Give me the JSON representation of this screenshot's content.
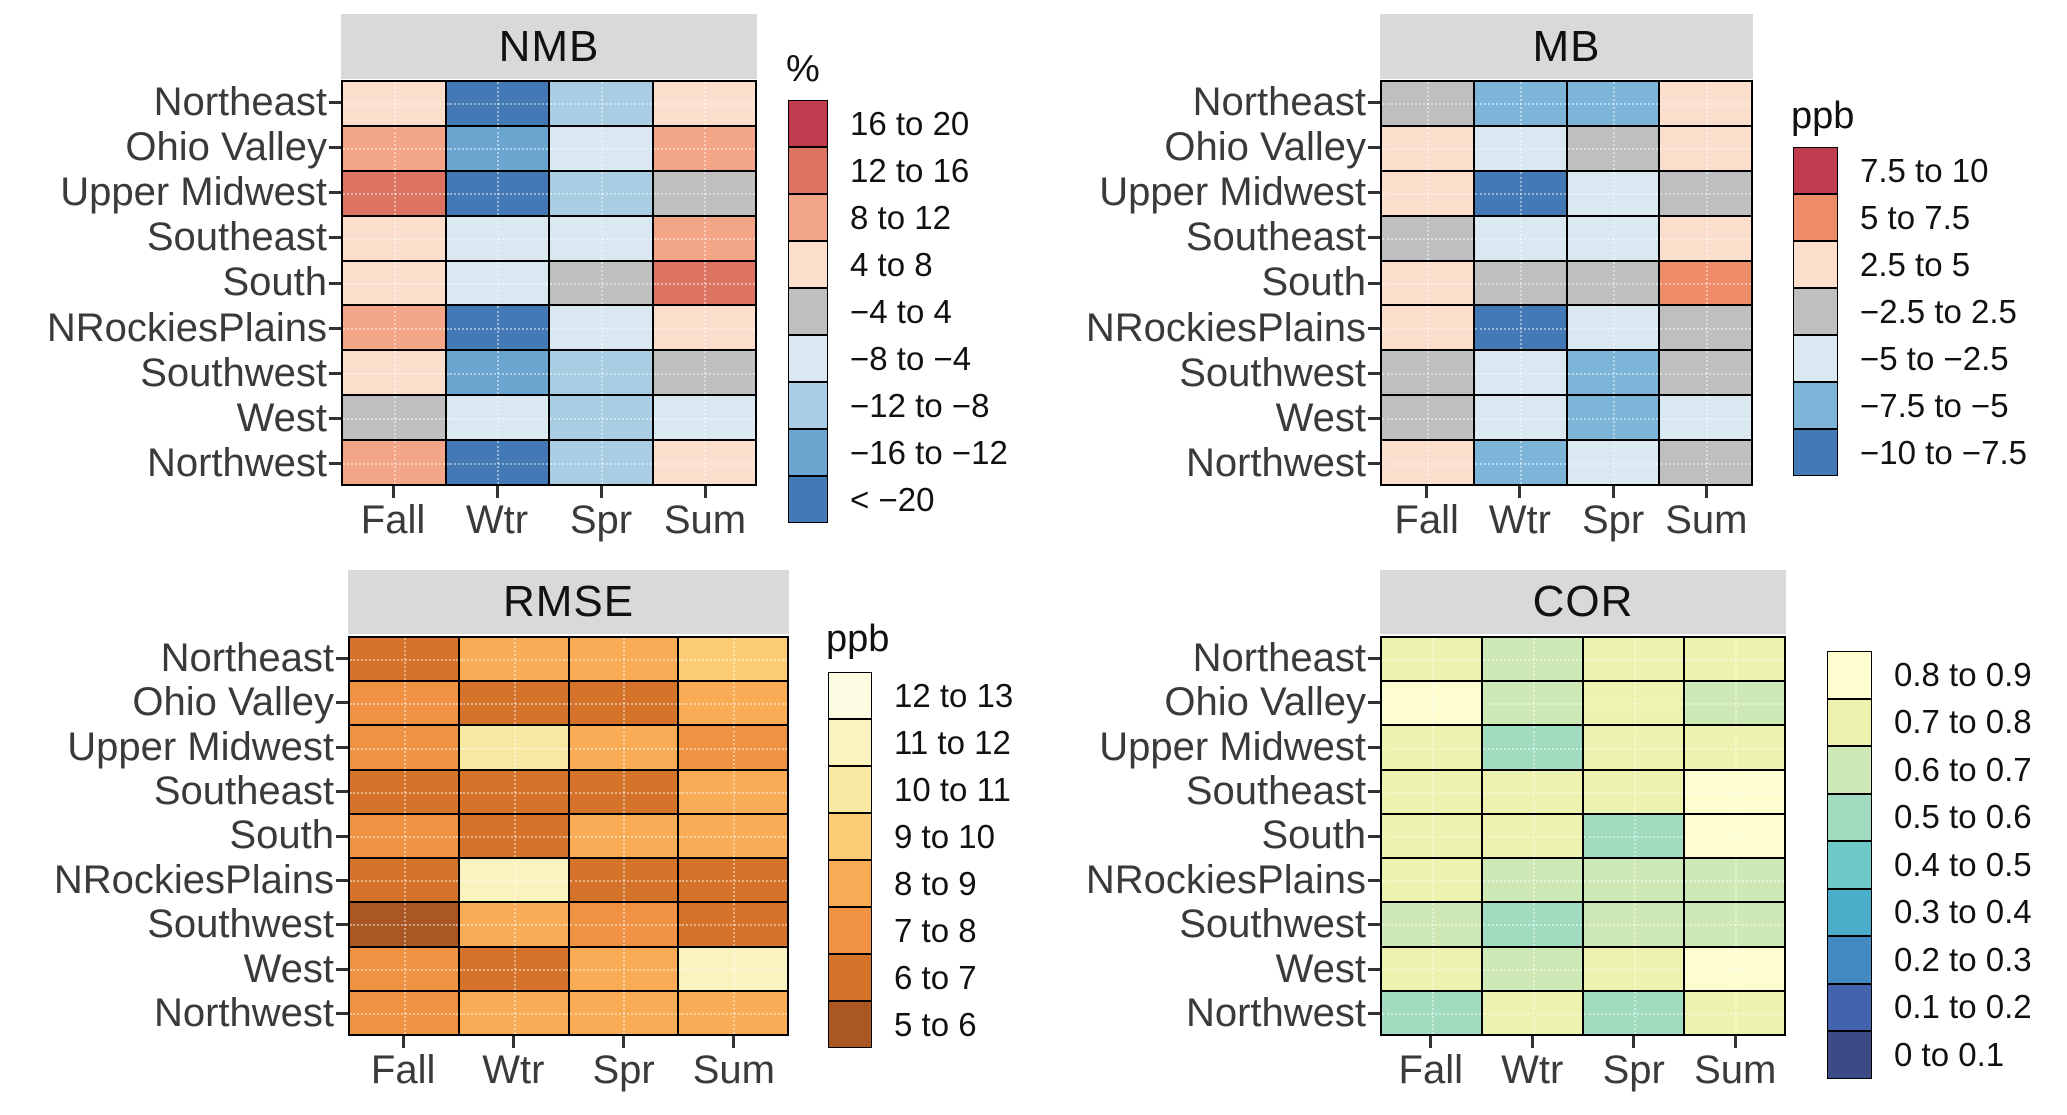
{
  "figure": {
    "background": "#ffffff",
    "strip_color": "#d9d9d9",
    "axis_text_color": "#3a3a3a"
  },
  "chart_data": [
    {
      "type": "heatmap",
      "id": "nmb",
      "title": "NMB",
      "legend_title": "%",
      "legend_position": "right",
      "rows": [
        "Northeast",
        "Ohio Valley",
        "Upper Midwest",
        "Southeast",
        "South",
        "NRockiesPlains",
        "Southwest",
        "West",
        "Northwest"
      ],
      "columns": [
        "Fall",
        "Wtr",
        "Spr",
        "Sum"
      ],
      "bins": [
        {
          "label": "16 to 20",
          "color": "#c13b4e"
        },
        {
          "label": "12 to 16",
          "color": "#dd7461"
        },
        {
          "label": "8 to 12",
          "color": "#f2a587"
        },
        {
          "label": "4 to 8",
          "color": "#fbdecb"
        },
        {
          "label": "−4 to 4",
          "color": "#bfbfbf"
        },
        {
          "label": "−8 to −4",
          "color": "#d9e8f1"
        },
        {
          "label": "−12 to −8",
          "color": "#a9cee4"
        },
        {
          "label": "−16 to −12",
          "color": "#6aa5d0"
        },
        {
          "label": "< −20",
          "color": "#4379b5"
        }
      ],
      "values": [
        [
          "4 to 8",
          "< −20",
          "−12 to −8",
          "4 to 8"
        ],
        [
          "8 to 12",
          "−16 to −12",
          "−8 to −4",
          "8 to 12"
        ],
        [
          "12 to 16",
          "< −20",
          "−12 to −8",
          "−4 to 4"
        ],
        [
          "4 to 8",
          "−8 to −4",
          "−8 to −4",
          "8 to 12"
        ],
        [
          "4 to 8",
          "−8 to −4",
          "−4 to 4",
          "12 to 16"
        ],
        [
          "8 to 12",
          "< −20",
          "−8 to −4",
          "4 to 8"
        ],
        [
          "4 to 8",
          "−16 to −12",
          "−12 to −8",
          "−4 to 4"
        ],
        [
          "−4 to 4",
          "−8 to −4",
          "−12 to −8",
          "−8 to −4"
        ],
        [
          "8 to 12",
          "< −20",
          "−12 to −8",
          "4 to 8"
        ]
      ]
    },
    {
      "type": "heatmap",
      "id": "mb",
      "title": "MB",
      "legend_title": "ppb",
      "legend_position": "right",
      "rows": [
        "Northeast",
        "Ohio Valley",
        "Upper Midwest",
        "Southeast",
        "South",
        "NRockiesPlains",
        "Southwest",
        "West",
        "Northwest"
      ],
      "columns": [
        "Fall",
        "Wtr",
        "Spr",
        "Sum"
      ],
      "bins": [
        {
          "label": "7.5 to 10",
          "color": "#c13b4e"
        },
        {
          "label": "5 to 7.5",
          "color": "#ee8b69"
        },
        {
          "label": "2.5 to 5",
          "color": "#fbdecb"
        },
        {
          "label": "−2.5 to 2.5",
          "color": "#bfbfbf"
        },
        {
          "label": "−5 to −2.5",
          "color": "#d9e8f1"
        },
        {
          "label": "−7.5 to −5",
          "color": "#7cb5d8"
        },
        {
          "label": "−10 to −7.5",
          "color": "#4379b5"
        }
      ],
      "values": [
        [
          "−2.5 to 2.5",
          "−7.5 to −5",
          "−7.5 to −5",
          "2.5 to 5"
        ],
        [
          "2.5 to 5",
          "−5 to −2.5",
          "−2.5 to 2.5",
          "2.5 to 5"
        ],
        [
          "2.5 to 5",
          "−10 to −7.5",
          "−5 to −2.5",
          "−2.5 to 2.5"
        ],
        [
          "−2.5 to 2.5",
          "−5 to −2.5",
          "−5 to −2.5",
          "2.5 to 5"
        ],
        [
          "2.5 to 5",
          "−2.5 to 2.5",
          "−2.5 to 2.5",
          "5 to 7.5"
        ],
        [
          "2.5 to 5",
          "−10 to −7.5",
          "−5 to −2.5",
          "−2.5 to 2.5"
        ],
        [
          "−2.5 to 2.5",
          "−5 to −2.5",
          "−7.5 to −5",
          "−2.5 to 2.5"
        ],
        [
          "−2.5 to 2.5",
          "−5 to −2.5",
          "−7.5 to −5",
          "−5 to −2.5"
        ],
        [
          "2.5 to 5",
          "−7.5 to −5",
          "−5 to −2.5",
          "−2.5 to 2.5"
        ]
      ]
    },
    {
      "type": "heatmap",
      "id": "rmse",
      "title": "RMSE",
      "legend_title": "ppb",
      "legend_position": "right",
      "rows": [
        "Northeast",
        "Ohio Valley",
        "Upper Midwest",
        "Southeast",
        "South",
        "NRockiesPlains",
        "Southwest",
        "West",
        "Northwest"
      ],
      "columns": [
        "Fall",
        "Wtr",
        "Spr",
        "Sum"
      ],
      "bins": [
        {
          "label": "12 to 13",
          "color": "#fdfce2"
        },
        {
          "label": "11 to 12",
          "color": "#faf3c0"
        },
        {
          "label": "10 to 11",
          "color": "#f8e9a2"
        },
        {
          "label": "9 to 10",
          "color": "#fccd74"
        },
        {
          "label": "8 to 9",
          "color": "#f9ab55"
        },
        {
          "label": "7 to 8",
          "color": "#f09243"
        },
        {
          "label": "6 to 7",
          "color": "#d6732b"
        },
        {
          "label": "5 to 6",
          "color": "#ab5723"
        }
      ],
      "values": [
        [
          "6 to 7",
          "8 to 9",
          "8 to 9",
          "9 to 10"
        ],
        [
          "7 to 8",
          "6 to 7",
          "6 to 7",
          "8 to 9"
        ],
        [
          "7 to 8",
          "10 to 11",
          "8 to 9",
          "7 to 8"
        ],
        [
          "6 to 7",
          "6 to 7",
          "6 to 7",
          "8 to 9"
        ],
        [
          "7 to 8",
          "6 to 7",
          "8 to 9",
          "8 to 9"
        ],
        [
          "6 to 7",
          "11 to 12",
          "6 to 7",
          "6 to 7"
        ],
        [
          "5 to 6",
          "8 to 9",
          "7 to 8",
          "6 to 7"
        ],
        [
          "7 to 8",
          "6 to 7",
          "8 to 9",
          "11 to 12"
        ],
        [
          "7 to 8",
          "8 to 9",
          "8 to 9",
          "8 to 9"
        ]
      ]
    },
    {
      "type": "heatmap",
      "id": "cor",
      "title": "COR",
      "legend_title": "",
      "legend_position": "right",
      "rows": [
        "Northeast",
        "Ohio Valley",
        "Upper Midwest",
        "Southeast",
        "South",
        "NRockiesPlains",
        "Southwest",
        "West",
        "Northwest"
      ],
      "columns": [
        "Fall",
        "Wtr",
        "Spr",
        "Sum"
      ],
      "bins": [
        {
          "label": "0.8 to 0.9",
          "color": "#fdfdd0"
        },
        {
          "label": "0.7 to 0.8",
          "color": "#edf3ae"
        },
        {
          "label": "0.6 to 0.7",
          "color": "#cfe9b6"
        },
        {
          "label": "0.5 to 0.6",
          "color": "#a2dcc0"
        },
        {
          "label": "0.4 to 0.5",
          "color": "#6ec8c5"
        },
        {
          "label": "0.3 to 0.4",
          "color": "#4aadca"
        },
        {
          "label": "0.2 to 0.3",
          "color": "#4489c2"
        },
        {
          "label": "0.1 to 0.2",
          "color": "#4463ae"
        },
        {
          "label": "0 to 0.1",
          "color": "#3c4b85"
        }
      ],
      "values": [
        [
          "0.7 to 0.8",
          "0.6 to 0.7",
          "0.7 to 0.8",
          "0.7 to 0.8"
        ],
        [
          "0.8 to 0.9",
          "0.6 to 0.7",
          "0.7 to 0.8",
          "0.6 to 0.7"
        ],
        [
          "0.7 to 0.8",
          "0.5 to 0.6",
          "0.7 to 0.8",
          "0.7 to 0.8"
        ],
        [
          "0.7 to 0.8",
          "0.7 to 0.8",
          "0.7 to 0.8",
          "0.8 to 0.9"
        ],
        [
          "0.7 to 0.8",
          "0.7 to 0.8",
          "0.5 to 0.6",
          "0.8 to 0.9"
        ],
        [
          "0.7 to 0.8",
          "0.6 to 0.7",
          "0.6 to 0.7",
          "0.6 to 0.7"
        ],
        [
          "0.6 to 0.7",
          "0.5 to 0.6",
          "0.6 to 0.7",
          "0.6 to 0.7"
        ],
        [
          "0.7 to 0.8",
          "0.6 to 0.7",
          "0.7 to 0.8",
          "0.8 to 0.9"
        ],
        [
          "0.5 to 0.6",
          "0.7 to 0.8",
          "0.5 to 0.6",
          "0.7 to 0.8"
        ]
      ]
    }
  ]
}
